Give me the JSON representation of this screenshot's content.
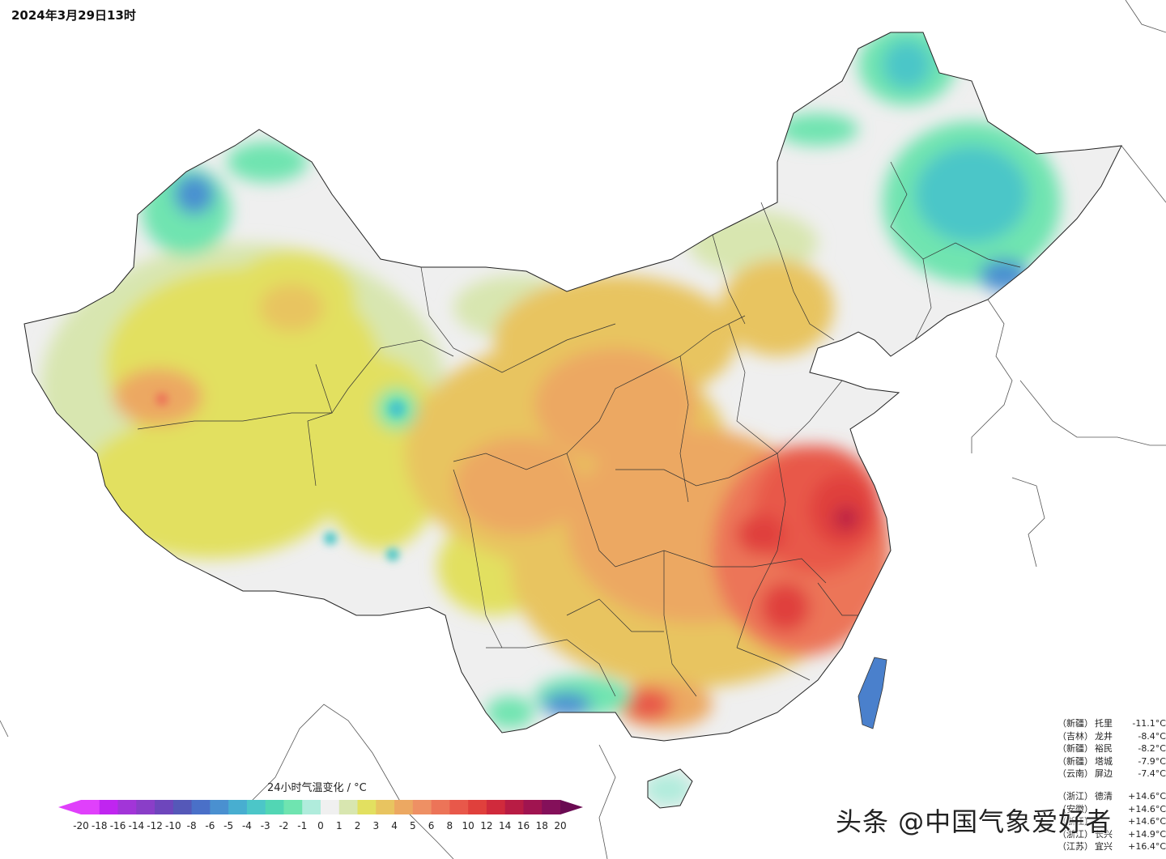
{
  "title": "2024年3月29日13时",
  "legend": {
    "title": "24小时气温变化 / °C",
    "ticks": [
      "-20",
      "-18",
      "-16",
      "-14",
      "-12",
      "-10",
      "-8",
      "-6",
      "-5",
      "-4",
      "-3",
      "-2",
      "-1",
      "0",
      "1",
      "2",
      "3",
      "4",
      "5",
      "6",
      "8",
      "10",
      "12",
      "14",
      "16",
      "18",
      "20"
    ],
    "colors": [
      "#e040fb",
      "#c025f0",
      "#a235d8",
      "#8a3ec8",
      "#6e46bc",
      "#5558b8",
      "#4a70c8",
      "#4a90d0",
      "#48aed0",
      "#4cc6c8",
      "#52d6b4",
      "#6fe4b0",
      "#b0ecdc",
      "#f0f0f0",
      "#d8e6b0",
      "#e2e060",
      "#e8c460",
      "#eca862",
      "#ee9064",
      "#ec7458",
      "#e8584a",
      "#e0403c",
      "#d02a3c",
      "#b81c44",
      "#a01450",
      "#84105a"
    ]
  },
  "stats_low": [
    {
      "prov": "（新疆）",
      "name": "托里",
      "value": "-11.1°C"
    },
    {
      "prov": "（吉林）",
      "name": "龙井",
      "value": "-8.4°C"
    },
    {
      "prov": "（新疆）",
      "name": "裕民",
      "value": "-8.2°C"
    },
    {
      "prov": "（新疆）",
      "name": "塔城",
      "value": "-7.9°C"
    },
    {
      "prov": "（云南）",
      "name": "屏边",
      "value": "-7.4°C"
    }
  ],
  "stats_high": [
    {
      "prov": "（浙江）",
      "name": "德清",
      "value": "+14.6°C"
    },
    {
      "prov": "（安徽）",
      "name": "",
      "value": "+14.6°C"
    },
    {
      "prov": "（浙江）",
      "name": "",
      "value": "+14.6°C"
    },
    {
      "prov": "（浙江）",
      "name": "长兴",
      "value": "+14.9°C"
    },
    {
      "prov": "（江苏）",
      "name": "宜兴",
      "value": "+16.4°C"
    }
  ],
  "watermark": "头条 @中国气象爱好者"
}
